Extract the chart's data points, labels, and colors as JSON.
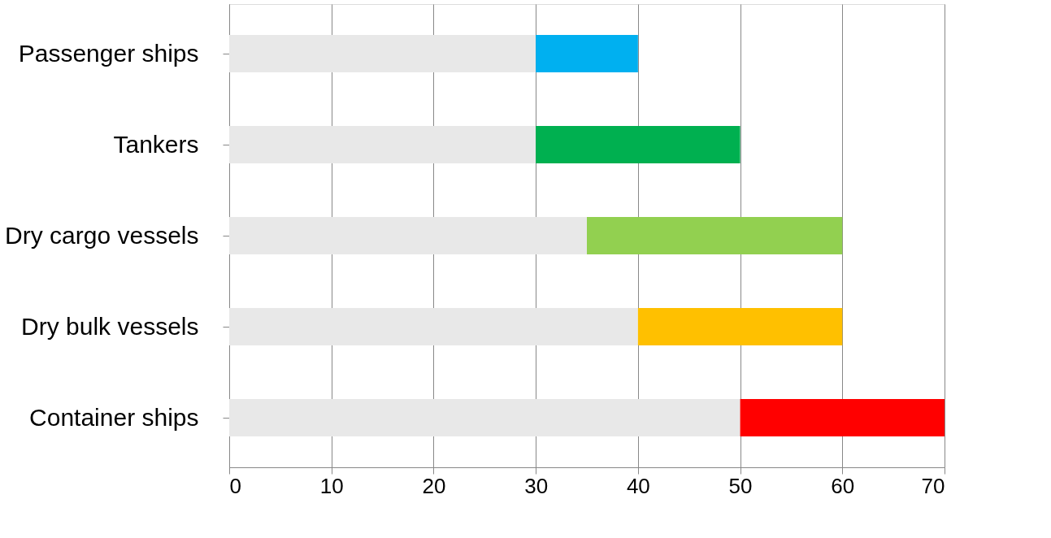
{
  "chart_data": {
    "type": "bar",
    "orientation": "horizontal",
    "stacked": true,
    "categories": [
      "Passenger ships",
      "Tankers",
      "Dry cargo vessels",
      "Dry bulk vessels",
      "Container ships"
    ],
    "series": [
      {
        "color": "#e8e8e8",
        "values": [
          30,
          30,
          35,
          40,
          50
        ]
      },
      {
        "colors": [
          "#00b0f0",
          "#00b050",
          "#92d050",
          "#ffc000",
          "#ff0000"
        ],
        "values": [
          10,
          20,
          25,
          20,
          20
        ]
      }
    ],
    "xlim": [
      0,
      70
    ],
    "xticks": [
      0,
      10,
      20,
      30,
      40,
      50,
      60,
      70
    ],
    "grid": "x"
  }
}
